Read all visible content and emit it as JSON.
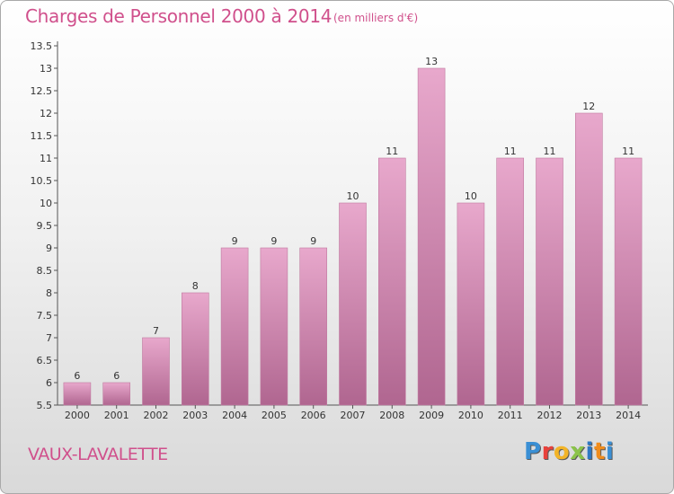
{
  "title": "Charges de Personnel 2000 à 2014",
  "subtitle": "(en milliers d'€)",
  "commune": "VAUX-LAVALETTE",
  "logo": {
    "text": "Proxiti",
    "letter_colors": [
      "#3a8fd4",
      "#e8413b",
      "#f2b428",
      "#8bc34a",
      "#2f78c4",
      "#f08c1c",
      "#3a8fd4"
    ]
  },
  "colors": {
    "text_pink": "#d0508c",
    "bar_top": "#e8a8cc",
    "bar_bottom": "#b06690",
    "axis": "#555555"
  },
  "chart_data": {
    "type": "bar",
    "categories": [
      "2000",
      "2001",
      "2002",
      "2003",
      "2004",
      "2005",
      "2006",
      "2007",
      "2008",
      "2009",
      "2010",
      "2011",
      "2012",
      "2013",
      "2014"
    ],
    "values": [
      6,
      6,
      7,
      8,
      9,
      9,
      9,
      10,
      11,
      13,
      10,
      11,
      11,
      12,
      11
    ],
    "data_labels": [
      "6",
      "6",
      "7",
      "8",
      "9",
      "9",
      "9",
      "10",
      "11",
      "13",
      "10",
      "11",
      "11",
      "12",
      "11"
    ],
    "yticks": [
      "5.5",
      "6",
      "6.5",
      "7",
      "7.5",
      "8",
      "8.5",
      "9",
      "9.5",
      "10",
      "10.5",
      "11",
      "11.5",
      "12",
      "12.5",
      "13",
      "13.5"
    ],
    "ylim": [
      5.5,
      13.5
    ],
    "grid": false,
    "legend": "none"
  }
}
